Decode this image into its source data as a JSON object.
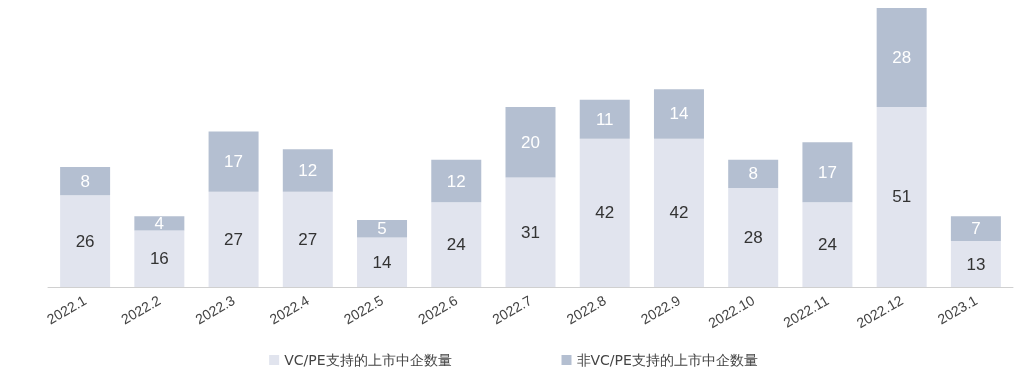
{
  "chart_data": {
    "type": "bar",
    "stacked": true,
    "legend": "bottom",
    "data_labels": true,
    "categories": [
      "2022.1",
      "2022.2",
      "2022.3",
      "2022.4",
      "2022.5",
      "2022.6",
      "2022.7",
      "2022.8",
      "2022.9",
      "2022.10",
      "2022.11",
      "2022.12",
      "2023.1"
    ],
    "series": [
      {
        "name": "VC/PE支持的上市中企数量",
        "color": "#e1e4ee",
        "values": [
          26,
          16,
          27,
          27,
          14,
          24,
          31,
          42,
          42,
          28,
          24,
          51,
          13
        ]
      },
      {
        "name": "非VC/PE支持的上市中企数量",
        "color": "#b4bfd1",
        "values": [
          8,
          4,
          17,
          12,
          5,
          12,
          20,
          11,
          14,
          8,
          17,
          28,
          7
        ]
      }
    ]
  }
}
